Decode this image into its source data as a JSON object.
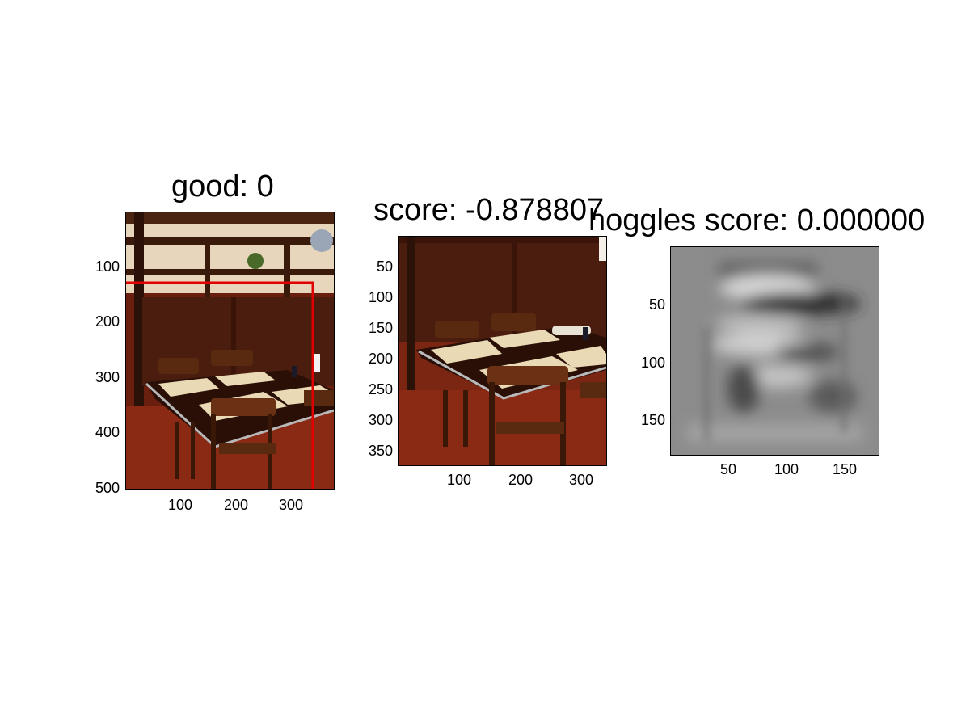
{
  "panels": [
    {
      "title": "good: 0",
      "y_ticks": [
        "100",
        "200",
        "300",
        "400",
        "500"
      ],
      "x_ticks": [
        "100",
        "200",
        "300"
      ]
    },
    {
      "title": "score: -0.878807",
      "y_ticks": [
        "50",
        "100",
        "150",
        "200",
        "250",
        "300",
        "350"
      ],
      "x_ticks": [
        "100",
        "200",
        "300"
      ]
    },
    {
      "title": "hoggles score: 0.000000",
      "y_ticks": [
        "50",
        "100",
        "150"
      ],
      "x_ticks": [
        "50",
        "100",
        "150"
      ]
    }
  ],
  "colors": {
    "detection_box": "#e00000"
  }
}
